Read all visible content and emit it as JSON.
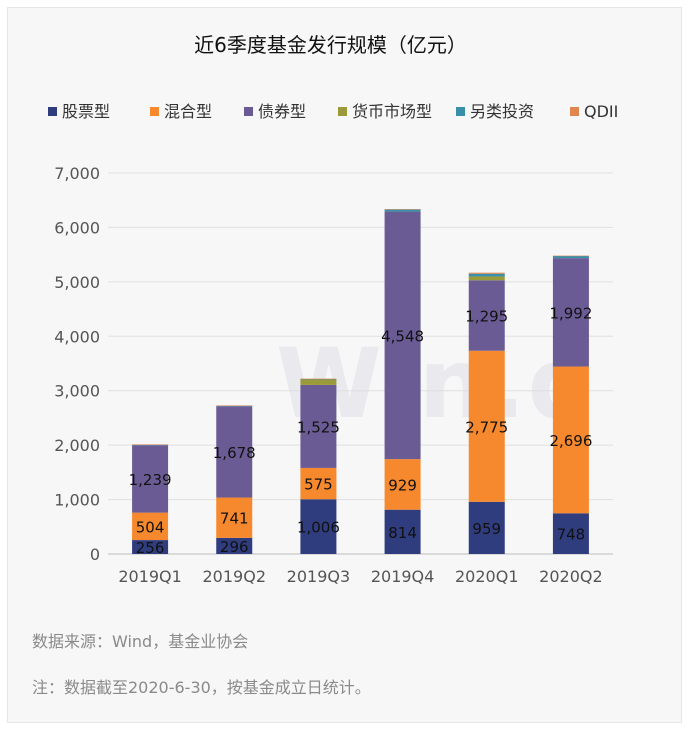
{
  "chart_data": {
    "type": "bar",
    "stacked": true,
    "title": "近6季度基金发行规模（亿元）",
    "categories": [
      "2019Q1",
      "2019Q2",
      "2019Q3",
      "2019Q4",
      "2020Q1",
      "2020Q2"
    ],
    "ylim": [
      0,
      7000
    ],
    "yticks": [
      0,
      1000,
      2000,
      3000,
      4000,
      5000,
      6000,
      7000
    ],
    "ytick_labels": [
      "0",
      "1,000",
      "2,000",
      "3,000",
      "4,000",
      "5,000",
      "6,000",
      "7,000"
    ],
    "grid": true,
    "legend_position": "top",
    "series": [
      {
        "name": "股票型",
        "color": "#2f3c7e",
        "values": [
          256,
          296,
          1006,
          814,
          959,
          748
        ],
        "labels": [
          "256",
          "296",
          "1,006",
          "814",
          "959",
          "748"
        ]
      },
      {
        "name": "混合型",
        "color": "#f6892e",
        "values": [
          504,
          741,
          575,
          929,
          2775,
          2696
        ],
        "labels": [
          "504",
          "741",
          "575",
          "929",
          "2,775",
          "2,696"
        ]
      },
      {
        "name": "债券型",
        "color": "#6b5b95",
        "values": [
          1239,
          1678,
          1525,
          4548,
          1295,
          1992
        ],
        "labels": [
          "1,239",
          "1,678",
          "1,525",
          "4,548",
          "1,295",
          "1,992"
        ]
      },
      {
        "name": "货币市场型",
        "color": "#9a9a3a",
        "values": [
          0,
          0,
          100,
          0,
          70,
          0
        ],
        "labels": [
          "",
          "",
          "",
          "",
          "",
          ""
        ]
      },
      {
        "name": "另类投资",
        "color": "#3a8fa8",
        "values": [
          10,
          10,
          10,
          40,
          50,
          40
        ],
        "labels": [
          "",
          "",
          "",
          "",
          "",
          ""
        ]
      },
      {
        "name": "QDII",
        "color": "#e0864f",
        "values": [
          5,
          5,
          5,
          5,
          20,
          5
        ],
        "labels": [
          "",
          "",
          "",
          "",
          "",
          ""
        ]
      }
    ]
  },
  "source_note": "数据来源：Wind，基金业协会",
  "footnote": "注：数据截至2020-6-30，按基金成立日统计。",
  "watermark": "Win.d"
}
